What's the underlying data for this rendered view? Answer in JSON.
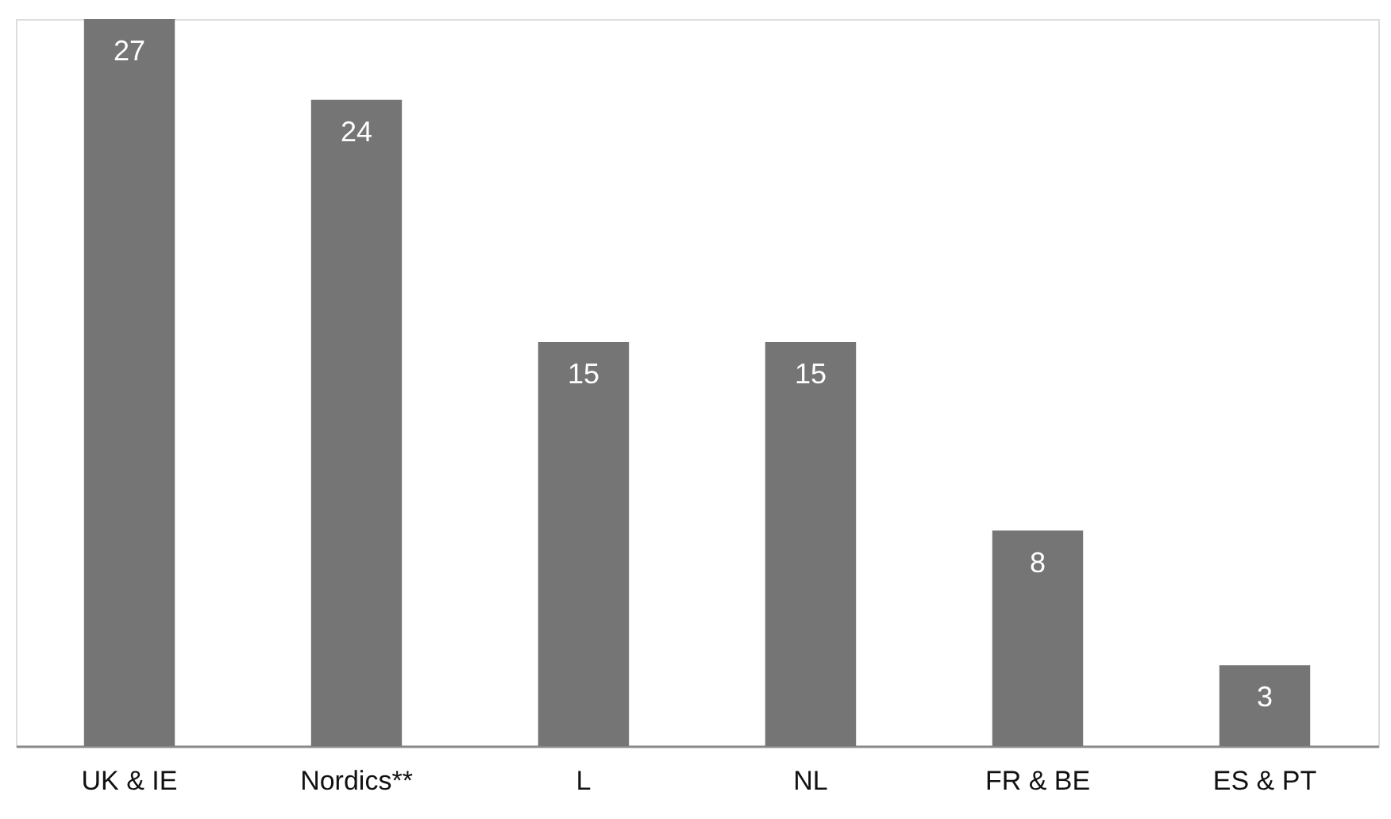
{
  "chart_data": {
    "type": "bar",
    "categories": [
      "UK & IE",
      "Nordics**",
      "L",
      "NL",
      "FR & BE",
      "ES & PT"
    ],
    "values": [
      27,
      24,
      15,
      15,
      8,
      3
    ],
    "color": "#757575",
    "data_labels": true,
    "grid": false
  }
}
